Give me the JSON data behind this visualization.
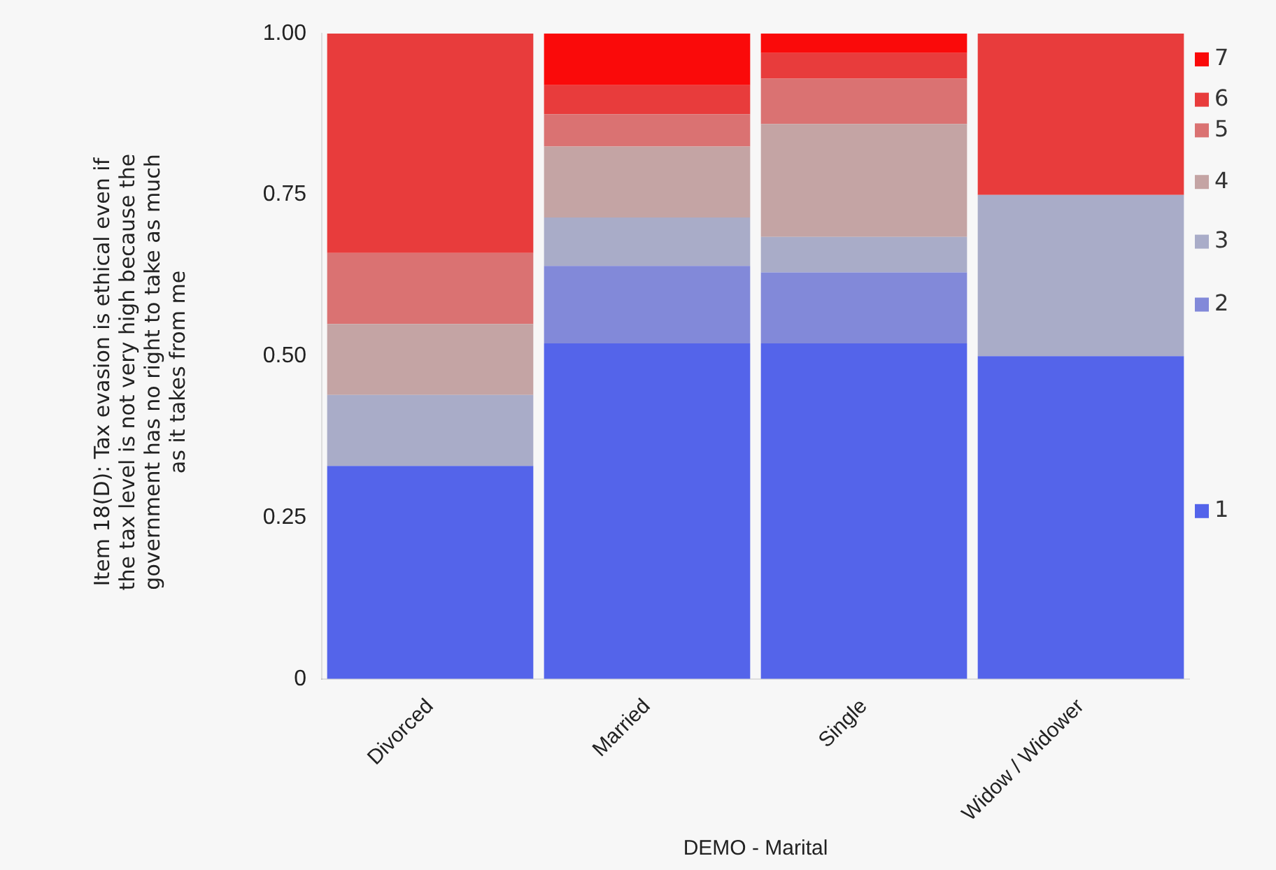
{
  "chart_data": {
    "type": "bar",
    "stacked": true,
    "xlabel": "DEMO - Marital",
    "ylabel": "Item 18(D): Tax evasion is ethical even if the tax level is not very high because the government has no right to take as much as it takes from me",
    "categories": [
      "Divorced",
      "Married",
      "Single",
      "Widow / Widower"
    ],
    "series": [
      {
        "name": "1",
        "color": "#5464ea",
        "values": [
          0.33,
          0.52,
          0.52,
          0.5
        ]
      },
      {
        "name": "2",
        "color": "#8289d9",
        "values": [
          0,
          0.12,
          0.11,
          0
        ]
      },
      {
        "name": "3",
        "color": "#a9acc8",
        "values": [
          0.11,
          0.075,
          0.055,
          0.25
        ]
      },
      {
        "name": "4",
        "color": "#c4a4a4",
        "values": [
          0.11,
          0.11,
          0.175,
          0
        ]
      },
      {
        "name": "5",
        "color": "#da7272",
        "values": [
          0.11,
          0.05,
          0.07,
          0
        ]
      },
      {
        "name": "6",
        "color": "#e83c3c",
        "values": [
          0.34,
          0.045,
          0.04,
          0.25
        ]
      },
      {
        "name": "7",
        "color": "#fa0a0a",
        "values": [
          0,
          0.08,
          0.03,
          0
        ]
      }
    ],
    "ylim": [
      0,
      1
    ],
    "yticks": [
      {
        "value": 0,
        "label": "0"
      },
      {
        "value": 0.25,
        "label": "0.25"
      },
      {
        "value": 0.5,
        "label": "0.50"
      },
      {
        "value": 0.75,
        "label": "0.75"
      },
      {
        "value": 1,
        "label": "1.00"
      }
    ],
    "grid": false,
    "legend": "right"
  }
}
